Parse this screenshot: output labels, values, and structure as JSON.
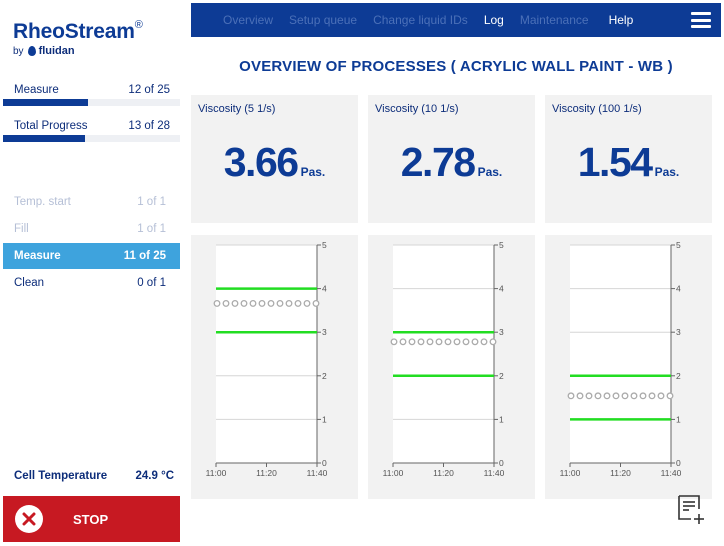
{
  "sidebar": {
    "brand": "RheoStream",
    "brand_mark": "®",
    "by": "by",
    "company": "fluidan",
    "progress": [
      {
        "label": "Measure",
        "value": "12 of 25",
        "fraction": 0.48
      },
      {
        "label": "Total Progress",
        "value": "13 of 28",
        "fraction": 0.4643
      }
    ],
    "steps": [
      {
        "label": "Temp. start",
        "value": "1 of 1",
        "state": "done"
      },
      {
        "label": "Fill",
        "value": "1 of 1",
        "state": "done"
      },
      {
        "label": "Measure",
        "value": "11 of 25",
        "state": "active"
      },
      {
        "label": "Clean",
        "value": "0 of 1",
        "state": "pending"
      }
    ],
    "cell_temp_label": "Cell Temperature",
    "cell_temp_value": "24.9 °C",
    "stop_label": "STOP"
  },
  "nav": {
    "items": [
      {
        "label": "Overview",
        "active": false
      },
      {
        "label": "Setup queue",
        "active": false
      },
      {
        "label": "Change liquid IDs",
        "active": false
      },
      {
        "label": "Log",
        "active": true
      },
      {
        "label": "Maintenance",
        "active": false
      },
      {
        "label": "Help",
        "active": true
      }
    ],
    "menu_icon": "hamburger-menu-icon"
  },
  "page_title": "OVERVIEW OF PROCESSES ( ACRYLIC WALL PAINT - WB )",
  "cards": [
    {
      "label": "Viscosity (5 1/s)",
      "value": "3.66",
      "unit": "Pas."
    },
    {
      "label": "Viscosity (10 1/s)",
      "value": "2.78",
      "unit": "Pas."
    },
    {
      "label": "Viscosity (100 1/s)",
      "value": "1.54",
      "unit": "Pas."
    }
  ],
  "chart_data": [
    {
      "type": "scatter",
      "x_ticks": [
        "11:00",
        "11:20",
        "11:40"
      ],
      "y_ticks": [
        0,
        1,
        2,
        3,
        4,
        5
      ],
      "ylim": [
        0,
        5
      ],
      "limits": [
        4.0,
        3.0
      ],
      "series": [
        {
          "values": [
            3.66,
            3.66,
            3.66,
            3.66,
            3.66,
            3.66,
            3.66,
            3.66,
            3.66,
            3.66,
            3.66,
            3.66
          ]
        }
      ],
      "grid": true
    },
    {
      "type": "scatter",
      "x_ticks": [
        "11:00",
        "11:20",
        "11:40"
      ],
      "y_ticks": [
        0,
        1,
        2,
        3,
        4,
        5
      ],
      "ylim": [
        0,
        5
      ],
      "limits": [
        3.0,
        2.0
      ],
      "series": [
        {
          "values": [
            2.78,
            2.78,
            2.78,
            2.78,
            2.78,
            2.78,
            2.78,
            2.78,
            2.78,
            2.78,
            2.78,
            2.78
          ]
        }
      ],
      "grid": true
    },
    {
      "type": "scatter",
      "x_ticks": [
        "11:00",
        "11:20",
        "11:40"
      ],
      "y_ticks": [
        0,
        1,
        2,
        3,
        4,
        5
      ],
      "ylim": [
        0,
        5
      ],
      "limits": [
        2.0,
        1.0
      ],
      "series": [
        {
          "values": [
            1.54,
            1.54,
            1.54,
            1.54,
            1.54,
            1.54,
            1.54,
            1.54,
            1.54,
            1.54,
            1.54,
            1.54
          ]
        }
      ],
      "grid": true
    }
  ],
  "colors": {
    "brand": "#0d3b95",
    "active_step": "#3ea3dd",
    "stop": "#c71922",
    "limit_line": "#22dd22",
    "point": "#aaaaaa"
  },
  "notes_icon": "add-note-icon"
}
